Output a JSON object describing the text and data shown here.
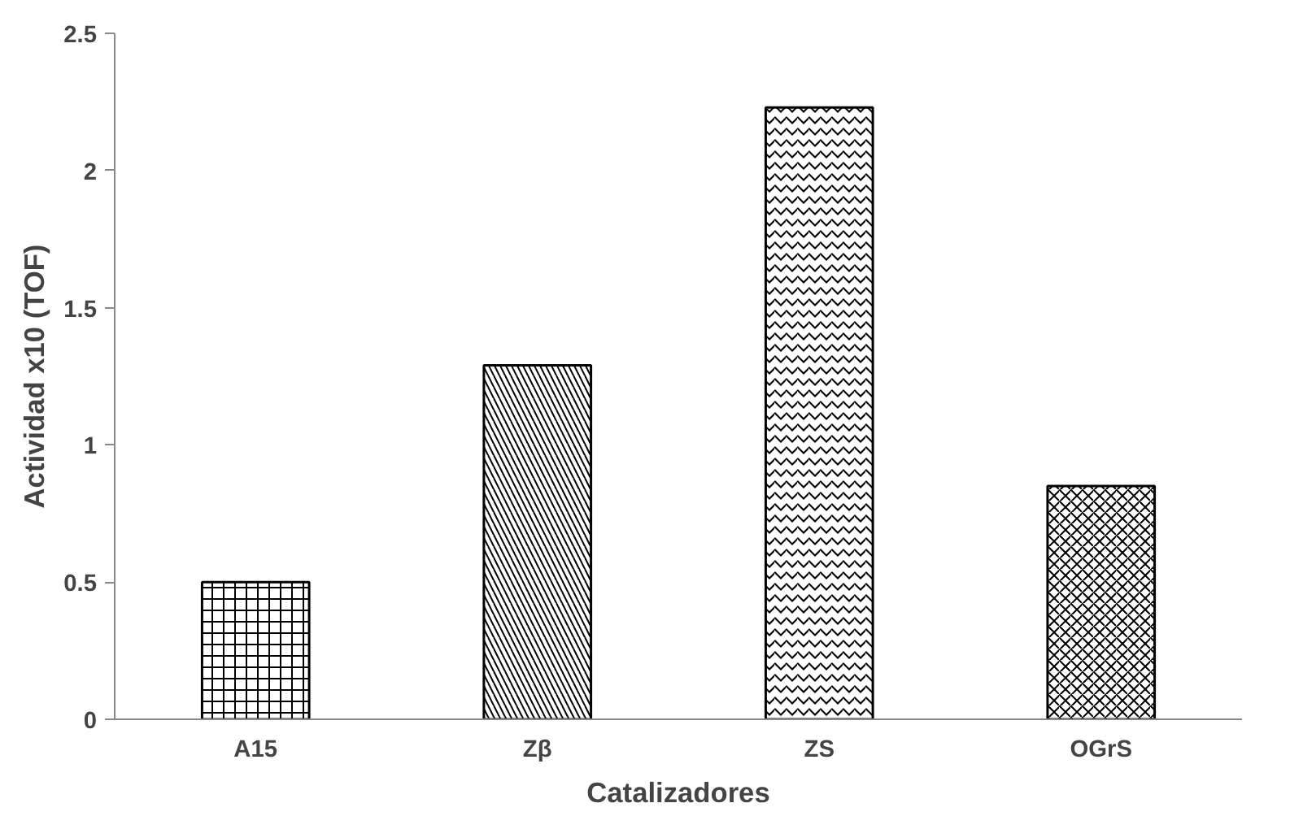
{
  "chart_data": {
    "type": "bar",
    "xlabel": "Catalizadores",
    "ylabel": "Actividad x10 (TOF)",
    "categories": [
      "A15",
      "Zβ",
      "ZS",
      "OGrS"
    ],
    "values": [
      0.5,
      1.29,
      2.23,
      0.85
    ],
    "color": "#000000",
    "ylim": [
      0,
      2.5
    ],
    "yticks": [
      0,
      0.5,
      1,
      1.5,
      2,
      2.5
    ],
    "grid": false
  }
}
